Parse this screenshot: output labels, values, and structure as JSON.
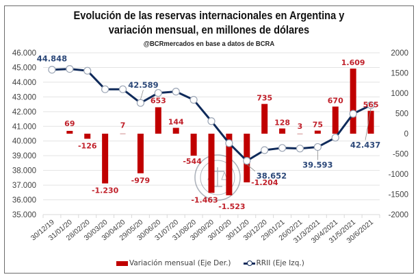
{
  "chart_data": {
    "type": "bar+line",
    "title_line1": "Evolución de las reservas internacionales en Argentina y",
    "title_line2": "variación mensual, en millones de dólares",
    "subtitle": "@BCRmercados en base a datos de BCRA",
    "categories": [
      "30/12/19",
      "31/01/20",
      "28/02/20",
      "30/03/20",
      "30/04/20",
      "29/05/20",
      "30/06/20",
      "31/07/20",
      "31/08/20",
      "30/09/20",
      "30/10/20",
      "30/11/20",
      "30/12/20",
      "29/01/21",
      "26/02/21",
      "31/3/2021",
      "30/4/2021",
      "31/5/2021",
      "30/6/2021"
    ],
    "series": [
      {
        "name": "Variación mensual (Eje Der.)",
        "type": "bar",
        "axis": "right",
        "color": "#c00000",
        "values": [
          null,
          69,
          -126,
          -1230,
          7,
          -979,
          653,
          144,
          -544,
          -1463,
          -1523,
          -1204,
          735,
          128,
          3,
          75,
          670,
          1609,
          565
        ],
        "labels": [
          "",
          "69",
          "-126",
          "-1.230",
          "7",
          "-979",
          "653",
          "144",
          "-544",
          "-1.463",
          "-1.523",
          "-1.204",
          "735",
          "128",
          "3",
          "75",
          "670",
          "1.609",
          "565"
        ]
      },
      {
        "name": "RRII (Eje Izq.)",
        "type": "line",
        "axis": "left",
        "color": "#0f2a5a",
        "values": [
          44848,
          44900,
          44780,
          43520,
          43520,
          42589,
          43270,
          43360,
          42800,
          41350,
          39850,
          38652,
          39380,
          39530,
          39490,
          39593,
          40230,
          41850,
          42437
        ],
        "labels": {
          "0": "44.848",
          "5": "42.589",
          "11": "38.652",
          "15": "39.593",
          "18": "42.437"
        }
      }
    ],
    "left_axis": {
      "ylim": [
        35000,
        46000
      ],
      "ticks": [
        35000,
        36000,
        37000,
        38000,
        39000,
        40000,
        41000,
        42000,
        43000,
        44000,
        45000,
        46000
      ],
      "tick_labels": [
        "35.000",
        "36.000",
        "37.000",
        "38.000",
        "39.000",
        "40.000",
        "41.000",
        "42.000",
        "43.000",
        "44.000",
        "45.000",
        "46.000"
      ]
    },
    "right_axis": {
      "ylim": [
        -2000,
        2000
      ],
      "ticks": [
        -2000,
        -1500,
        -1000,
        -500,
        0,
        500,
        1000,
        1500,
        2000
      ],
      "tick_labels": [
        "-2000",
        "-1500",
        "-1000",
        "-500",
        "0",
        "500",
        "1000",
        "1500",
        "2000"
      ]
    },
    "grid": true,
    "legend_position": "bottom",
    "legend": [
      "Variación mensual (Eje Der.)",
      "RRII (Eje Izq.)"
    ]
  }
}
